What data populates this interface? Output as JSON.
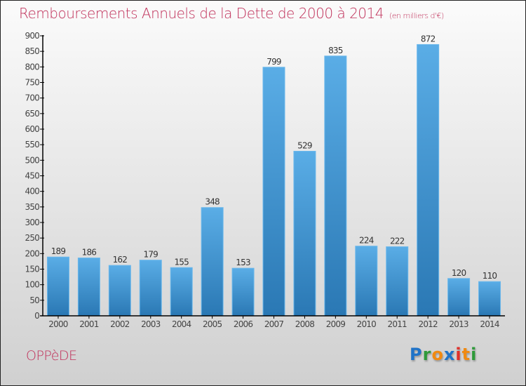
{
  "header": {
    "title": "Remboursements Annuels de la Dette de 2000 à 2014",
    "unit": "(en milliers d'€)"
  },
  "footer": {
    "commune": "OPPèDE",
    "logo_letters": [
      {
        "ch": "P",
        "color": "#1f73c8"
      },
      {
        "ch": "r",
        "color": "#2e9a3a"
      },
      {
        "ch": "o",
        "color": "#f08a12"
      },
      {
        "ch": "x",
        "color": "#1f73c8"
      },
      {
        "ch": "i",
        "color": "#e0302a"
      },
      {
        "ch": "t",
        "color": "#f08a12"
      },
      {
        "ch": "i",
        "color": "#2e9a3a"
      }
    ]
  },
  "colors": {
    "title": "#c0305a",
    "bar_top": "#5aade6",
    "bar_bottom": "#2a78b4",
    "axis": "#000000"
  },
  "chart_data": {
    "type": "bar",
    "title": "Remboursements Annuels de la Dette de 2000 à 2014",
    "subtitle": "(en milliers d'€)",
    "xlabel": "",
    "ylabel": "",
    "categories": [
      "2000",
      "2001",
      "2002",
      "2003",
      "2004",
      "2005",
      "2006",
      "2007",
      "2008",
      "2009",
      "2010",
      "2011",
      "2012",
      "2013",
      "2014"
    ],
    "values": [
      189,
      186,
      162,
      179,
      155,
      348,
      153,
      799,
      529,
      835,
      224,
      222,
      872,
      120,
      110
    ],
    "ylim": [
      0,
      900
    ],
    "yticks": [
      0,
      50,
      100,
      150,
      200,
      250,
      300,
      350,
      400,
      450,
      500,
      550,
      600,
      650,
      700,
      750,
      800,
      850,
      900
    ],
    "grid": false,
    "legend": "none",
    "data_labels": true
  }
}
